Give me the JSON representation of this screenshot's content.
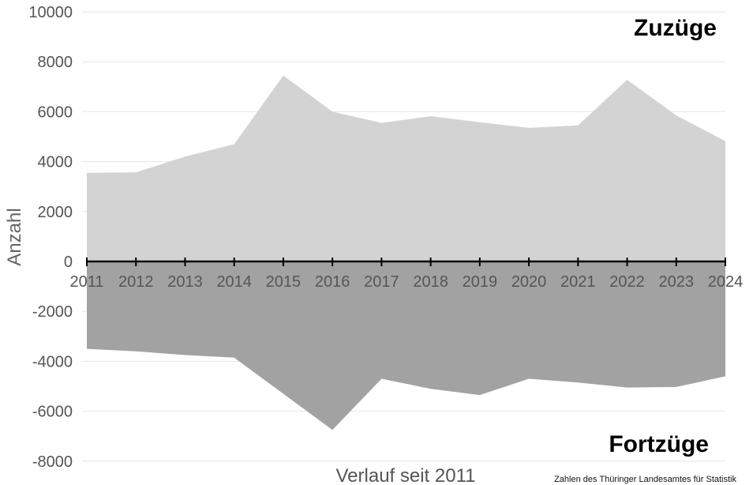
{
  "chart_data": {
    "type": "area",
    "x": [
      "2011",
      "2012",
      "2013",
      "2014",
      "2015",
      "2016",
      "2017",
      "2018",
      "2019",
      "2020",
      "2021",
      "2022",
      "2023",
      "2024"
    ],
    "series": [
      {
        "name": "Zuzüge",
        "color": "#d3d3d3",
        "values": [
          3550,
          3570,
          4200,
          4700,
          7450,
          6000,
          5550,
          5820,
          5580,
          5350,
          5450,
          7280,
          5850,
          4820
        ]
      },
      {
        "name": "Fortzüge",
        "color": "#a2a2a2",
        "values": [
          -3500,
          -3600,
          -3750,
          -3850,
          -5300,
          -6750,
          -4700,
          -5100,
          -5350,
          -4700,
          -4850,
          -5050,
          -5030,
          -4600
        ]
      }
    ],
    "yticks": [
      "10000",
      "8000",
      "6000",
      "4000",
      "2000",
      "0",
      "-2000",
      "-4000",
      "-6000",
      "-8000"
    ],
    "ylim": [
      -8000,
      10000
    ],
    "ylabel": "Anzahl",
    "xlabel": "Verlauf seit 2011",
    "annotations": {
      "top": "Zuzüge",
      "bottom": "Fortzüge"
    },
    "source": "Zahlen des Thüringer Landesamtes für Statistik",
    "grid": true,
    "legend": "none"
  }
}
